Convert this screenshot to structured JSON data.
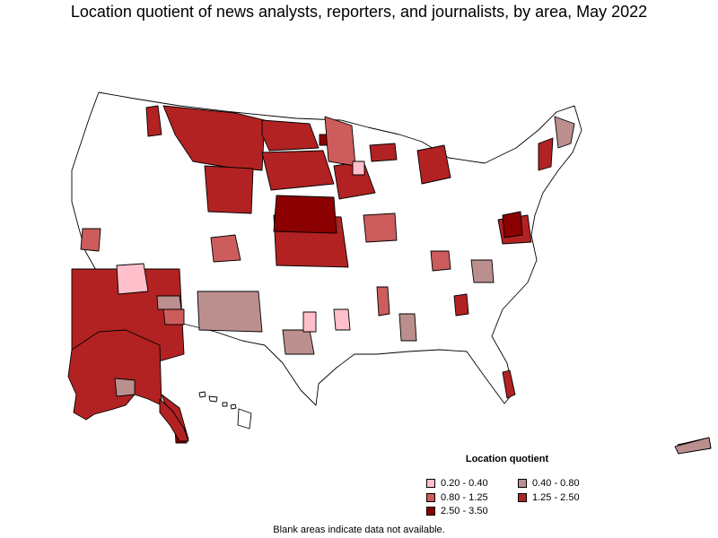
{
  "title": "Location quotient of news analysts, reporters, and journalists, by area, May 2022",
  "legend": {
    "title": "Location quotient",
    "items": [
      {
        "label": "0.20 - 0.40",
        "color": "#ffc0cb"
      },
      {
        "label": "0.40 - 0.80",
        "color": "#bc8f8f"
      },
      {
        "label": "0.80 - 1.25",
        "color": "#cd5c5c"
      },
      {
        "label": "1.25 - 2.50",
        "color": "#b22222"
      },
      {
        "label": "2.50 - 3.50",
        "color": "#8b0000"
      }
    ]
  },
  "note": "Blank areas indicate data not available."
}
